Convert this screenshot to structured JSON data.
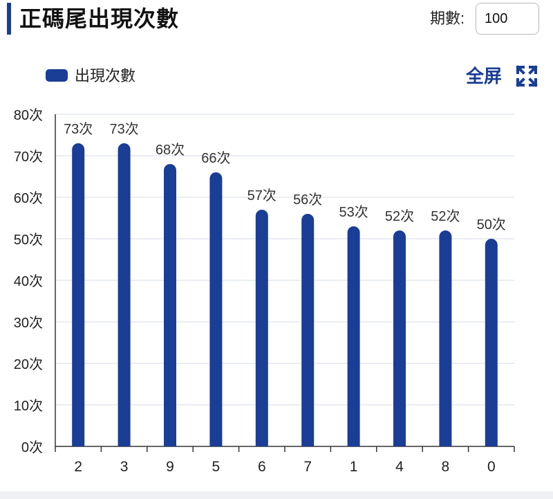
{
  "header": {
    "title": "正碼尾出現次數",
    "period_label": "期數:",
    "period_value": "100"
  },
  "legend": {
    "label": "出現次數"
  },
  "toolbar": {
    "fullscreen_label": "全屏",
    "fullscreen_icon": "expand-icon"
  },
  "colors": {
    "accent": "#1a3d96",
    "bar": "#1a3d96",
    "grid": "#e3e7ee",
    "axis": "#333333"
  },
  "chart_data": {
    "type": "bar",
    "categories": [
      "2",
      "3",
      "9",
      "5",
      "6",
      "7",
      "1",
      "4",
      "8",
      "0"
    ],
    "series": [
      {
        "name": "出現次數",
        "values": [
          73,
          73,
          68,
          66,
          57,
          56,
          53,
          52,
          52,
          50
        ]
      }
    ],
    "data_labels": [
      "73次",
      "73次",
      "68次",
      "66次",
      "57次",
      "56次",
      "53次",
      "52次",
      "52次",
      "50次"
    ],
    "yticks": [
      "0次",
      "10次",
      "20次",
      "30次",
      "40次",
      "50次",
      "60次",
      "70次",
      "80次"
    ],
    "ylim": [
      0,
      80
    ],
    "grid": true,
    "legend_position": "top-left"
  }
}
